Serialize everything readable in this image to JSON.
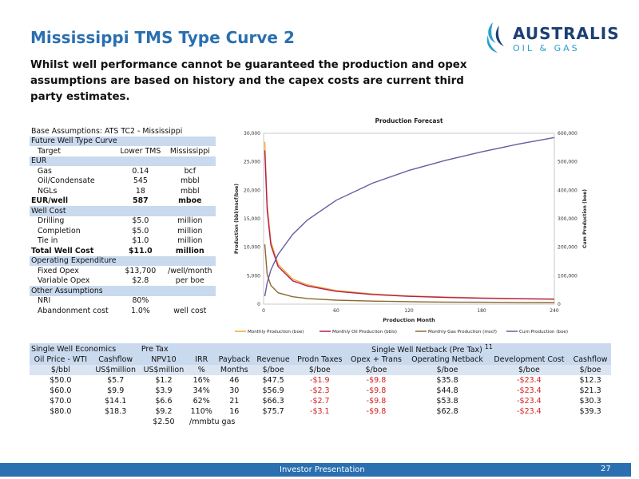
{
  "header": {
    "title": "Mississippi TMS Type Curve 2",
    "subtitle": "Whilst well performance cannot be guaranteed the production and opex assumptions are based on history and the capex costs are current third party estimates."
  },
  "logo": {
    "line1": "AUSTRALIS",
    "line2": "OIL & GAS",
    "color": "#1c3f72",
    "accent": "#2aa0d0"
  },
  "base_assumptions": {
    "title": "Base Assumptions: ATS TC2 - Mississippi",
    "future_curve_label": "Future Well Type Curve",
    "target_row": [
      "Target",
      "Lower TMS",
      "Mississippi"
    ],
    "eur_label": "EUR",
    "eur_rows": [
      [
        "Gas",
        "0.14",
        "bcf"
      ],
      [
        "Oil/Condensate",
        "545",
        "mbbl"
      ],
      [
        "NGLs",
        "18",
        "mbbl"
      ]
    ],
    "eur_total": [
      "EUR/well",
      "587",
      "mboe"
    ],
    "well_cost_label": "Well Cost",
    "cost_rows": [
      [
        "Drilling",
        "$5.0",
        "million"
      ],
      [
        "Completion",
        "$5.0",
        "million"
      ],
      [
        "Tie in",
        "$1.0",
        "million"
      ]
    ],
    "cost_total": [
      "Total Well Cost",
      "$11.0",
      "million"
    ],
    "opex_label": "Operating Expenditure",
    "opex_rows": [
      [
        "Fixed Opex",
        "$13,700",
        "/well/month"
      ],
      [
        "Variable Opex",
        "$2.8",
        "per boe"
      ]
    ],
    "other_label": "Other Assumptions",
    "other_rows": [
      [
        "NRI",
        "80%",
        ""
      ],
      [
        "Abandonment cost",
        "1.0%",
        "well cost"
      ]
    ]
  },
  "economics": {
    "left_title": "Single Well Economics",
    "pretax_label": "Pre Tax",
    "right_title": "Single Well Netback (Pre Tax)",
    "right_sup": "11",
    "head1": [
      "Oil Price - WTI",
      "Cashflow",
      "NPV10",
      "IRR",
      "Payback",
      "Revenue",
      "Prodn Taxes",
      "Opex + Trans",
      "Operating Netback",
      "Development Cost",
      "Cashflow"
    ],
    "head2": [
      "$/bbl",
      "US$million",
      "US$million",
      "%",
      "Months",
      "$/boe",
      "$/boe",
      "$/boe",
      "$/boe",
      "$/boe",
      "$/boe"
    ],
    "rows": [
      [
        "$50.0",
        "$5.7",
        "$1.2",
        "16%",
        "46",
        "$47.5",
        "-$1.9",
        "-$9.8",
        "$35.8",
        "-$23.4",
        "$12.3"
      ],
      [
        "$60.0",
        "$9.9",
        "$3.9",
        "34%",
        "30",
        "$56.9",
        "-$2.3",
        "-$9.8",
        "$44.8",
        "-$23.4",
        "$21.3"
      ],
      [
        "$70.0",
        "$14.1",
        "$6.6",
        "62%",
        "21",
        "$66.3",
        "-$2.7",
        "-$9.8",
        "$53.8",
        "-$23.4",
        "$30.3"
      ],
      [
        "$80.0",
        "$18.3",
        "$9.2",
        "110%",
        "16",
        "$75.7",
        "-$3.1",
        "-$9.8",
        "$62.8",
        "-$23.4",
        "$39.3"
      ]
    ],
    "gas_price": "$2.50",
    "gas_unit": "/mmbtu gas"
  },
  "footer": {
    "label": "Investor Presentation",
    "page": "27"
  },
  "chart_data": {
    "type": "line",
    "title": "Production Forecast",
    "xlabel": "Production Month",
    "ylabel": "Production (bbl/mscf/boe)",
    "y2label": "Cum Production (boe)",
    "xlim": [
      0,
      240
    ],
    "ylim": [
      0,
      30000
    ],
    "y2lim": [
      0,
      600000
    ],
    "x_ticks": [
      "0",
      "60",
      "120",
      "180",
      "240"
    ],
    "y_ticks": [
      "0",
      "5,000",
      "10,000",
      "15,000",
      "20,000",
      "25,000",
      "30,000"
    ],
    "y2_ticks": [
      "0",
      "100,000",
      "200,000",
      "300,000",
      "400,000",
      "500,000",
      "600,000"
    ],
    "x": [
      1,
      3,
      6,
      12,
      24,
      36,
      60,
      90,
      120,
      150,
      180,
      210,
      240
    ],
    "series": [
      {
        "name": "Monthly Production (boe)",
        "color": "#f0a830",
        "axis": "left",
        "values": [
          28500,
          17500,
          11000,
          7000,
          4400,
          3400,
          2400,
          1800,
          1450,
          1250,
          1100,
          1000,
          920
        ]
      },
      {
        "name": "Monthly Oil Production (bbls)",
        "color": "#b2205a",
        "axis": "left",
        "values": [
          27000,
          16500,
          10400,
          6600,
          4100,
          3200,
          2250,
          1700,
          1380,
          1180,
          1040,
          950,
          870
        ]
      },
      {
        "name": "Monthly Gas Production (mscf)",
        "color": "#8a6a30",
        "axis": "left",
        "values": [
          10500,
          5200,
          3300,
          2000,
          1300,
          1000,
          700,
          530,
          430,
          370,
          330,
          300,
          280
        ]
      },
      {
        "name": "Cum Production (boe)",
        "color": "#6a5aa0",
        "axis": "right",
        "values": [
          28000,
          75000,
          120000,
          175000,
          245000,
          295000,
          365000,
          425000,
          470000,
          505000,
          535000,
          562000,
          585000
        ]
      }
    ]
  }
}
